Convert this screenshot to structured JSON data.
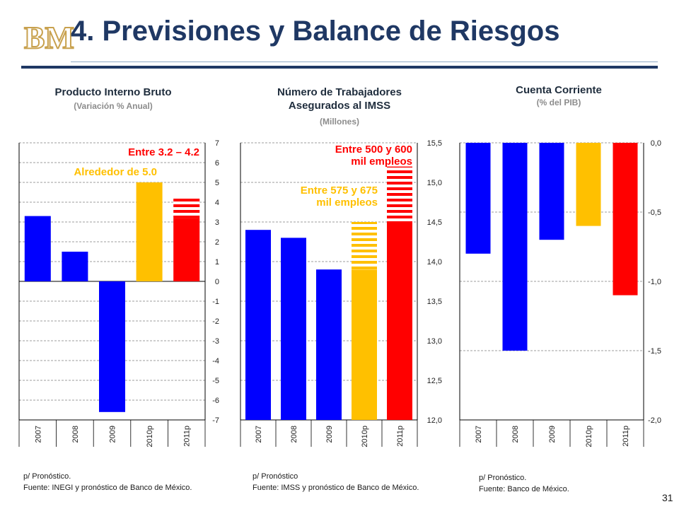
{
  "slide": {
    "title": "4. Previsiones y Balance de Riesgos",
    "page_number": "31",
    "logo_text": "BM"
  },
  "colors": {
    "blue": "#0000ff",
    "orange": "#ffc000",
    "red": "#ff0000",
    "title": "#1f3864",
    "logo": "#c8a14e"
  },
  "chart_data": [
    {
      "type": "bar",
      "title": "Producto Interno Bruto",
      "subtitle": "(Variación  % Anual)",
      "categories": [
        "2007",
        "2008",
        "2009",
        "2010p",
        "2011p"
      ],
      "values": [
        3.3,
        1.5,
        -6.6,
        5.0,
        3.2
      ],
      "range_top": [
        null,
        null,
        null,
        null,
        4.2
      ],
      "bar_colors": [
        "blue",
        "blue",
        "blue",
        "orange",
        "red"
      ],
      "y_ticks": [
        "7",
        "6",
        "5",
        "4",
        "3",
        "2",
        "1",
        "0",
        "-1",
        "-2",
        "-3",
        "-4",
        "-5",
        "-6",
        "-7"
      ],
      "ylim": [
        -7,
        7
      ],
      "y_axis_position": "right",
      "annotations": [
        {
          "text": "Entre 3.2 – 4.2",
          "color": "red"
        },
        {
          "text": "Alrededor de 5.0",
          "color": "orange"
        }
      ],
      "notes": [
        "p/ Pronóstico.",
        "Fuente: INEGI y pronóstico de Banco de México."
      ]
    },
    {
      "type": "bar",
      "title": "Número de Trabajadores Asegurados al IMSS",
      "subtitle": "(Millones)",
      "categories": [
        "2007",
        "2008",
        "2009",
        "2010p",
        "2011p"
      ],
      "values": [
        14.4,
        14.3,
        13.9,
        13.9,
        14.5
      ],
      "range_top": [
        null,
        null,
        null,
        14.5,
        15.2
      ],
      "bar_colors": [
        "blue",
        "blue",
        "blue",
        "orange",
        "red"
      ],
      "y_ticks": [
        "15,5",
        "15,0",
        "14,5",
        "14,0",
        "13,5",
        "13,0",
        "12,5",
        "12,0"
      ],
      "ylim": [
        12.0,
        15.5
      ],
      "y_axis_position": "right",
      "annotations": [
        {
          "text": "Entre 500 y 600",
          "text2": "mil empleos",
          "color": "red"
        },
        {
          "text": "Entre 575 y 675",
          "text2": "mil empleos",
          "color": "orange"
        }
      ],
      "notes": [
        "p/ Pronóstico",
        "Fuente: IMSS y pronóstico de Banco de México."
      ]
    },
    {
      "type": "bar",
      "title": "Cuenta Corriente",
      "subtitle": "(% del PIB)",
      "categories": [
        "2007",
        "2008",
        "2009",
        "2010p",
        "2011p"
      ],
      "values": [
        -0.8,
        -1.5,
        -0.7,
        -0.6,
        -1.1
      ],
      "range_top": [
        null,
        null,
        null,
        null,
        null
      ],
      "bar_colors": [
        "blue",
        "blue",
        "blue",
        "orange",
        "red"
      ],
      "y_ticks": [
        "0,0",
        "-0,5",
        "-1,0",
        "-1,5",
        "-2,0"
      ],
      "ylim": [
        -2.0,
        0.0
      ],
      "y_axis_position": "right",
      "annotations": [],
      "notes": [
        "p/ Pronóstico.",
        "Fuente: Banco de México."
      ]
    }
  ]
}
